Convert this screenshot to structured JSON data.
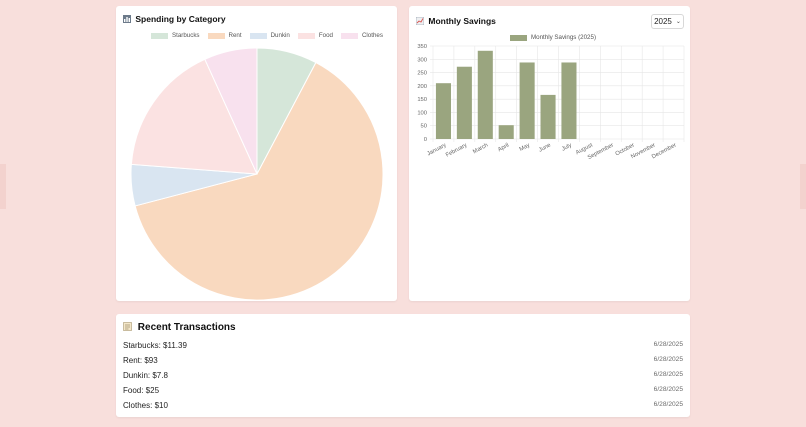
{
  "pie_card": {
    "icon": "bar-chart-icon",
    "title": "Spending by Category",
    "chart_data": {
      "type": "pie",
      "categories": [
        "Starbucks",
        "Rent",
        "Dunkin",
        "Food",
        "Clothes"
      ],
      "values": [
        11.39,
        93,
        7.8,
        25,
        10
      ],
      "colors": [
        "#d5e6d9",
        "#f9d9bf",
        "#d9e5f1",
        "#fbe2e2",
        "#f8e1ee"
      ],
      "legend_position": "top"
    }
  },
  "savings_card": {
    "icon": "line-chart-icon",
    "title": "Monthly Savings",
    "year_select": {
      "value": "2025"
    },
    "chart_data": {
      "type": "bar",
      "categories": [
        "January",
        "February",
        "March",
        "April",
        "May",
        "June",
        "July",
        "August",
        "September",
        "October",
        "November",
        "December"
      ],
      "series": [
        {
          "name": "Monthly Savings (2025)",
          "values": [
            210,
            272,
            332,
            52,
            288,
            166,
            288,
            0,
            0,
            0,
            0,
            0
          ]
        }
      ],
      "ylim": [
        0,
        350
      ],
      "yticks": [
        0,
        50,
        100,
        150,
        200,
        250,
        300,
        350
      ],
      "grid": true,
      "bar_color": "#9aa57f",
      "legend_position": "top"
    }
  },
  "transactions": {
    "icon": "memo-icon",
    "title": "Recent Transactions",
    "items": [
      {
        "label": "Starbucks: $11.39",
        "date": "6/28/2025"
      },
      {
        "label": "Rent: $93",
        "date": "6/28/2025"
      },
      {
        "label": "Dunkin: $7.8",
        "date": "6/28/2025"
      },
      {
        "label": "Food: $25",
        "date": "6/28/2025"
      },
      {
        "label": "Clothes: $10",
        "date": "6/28/2025"
      }
    ]
  }
}
